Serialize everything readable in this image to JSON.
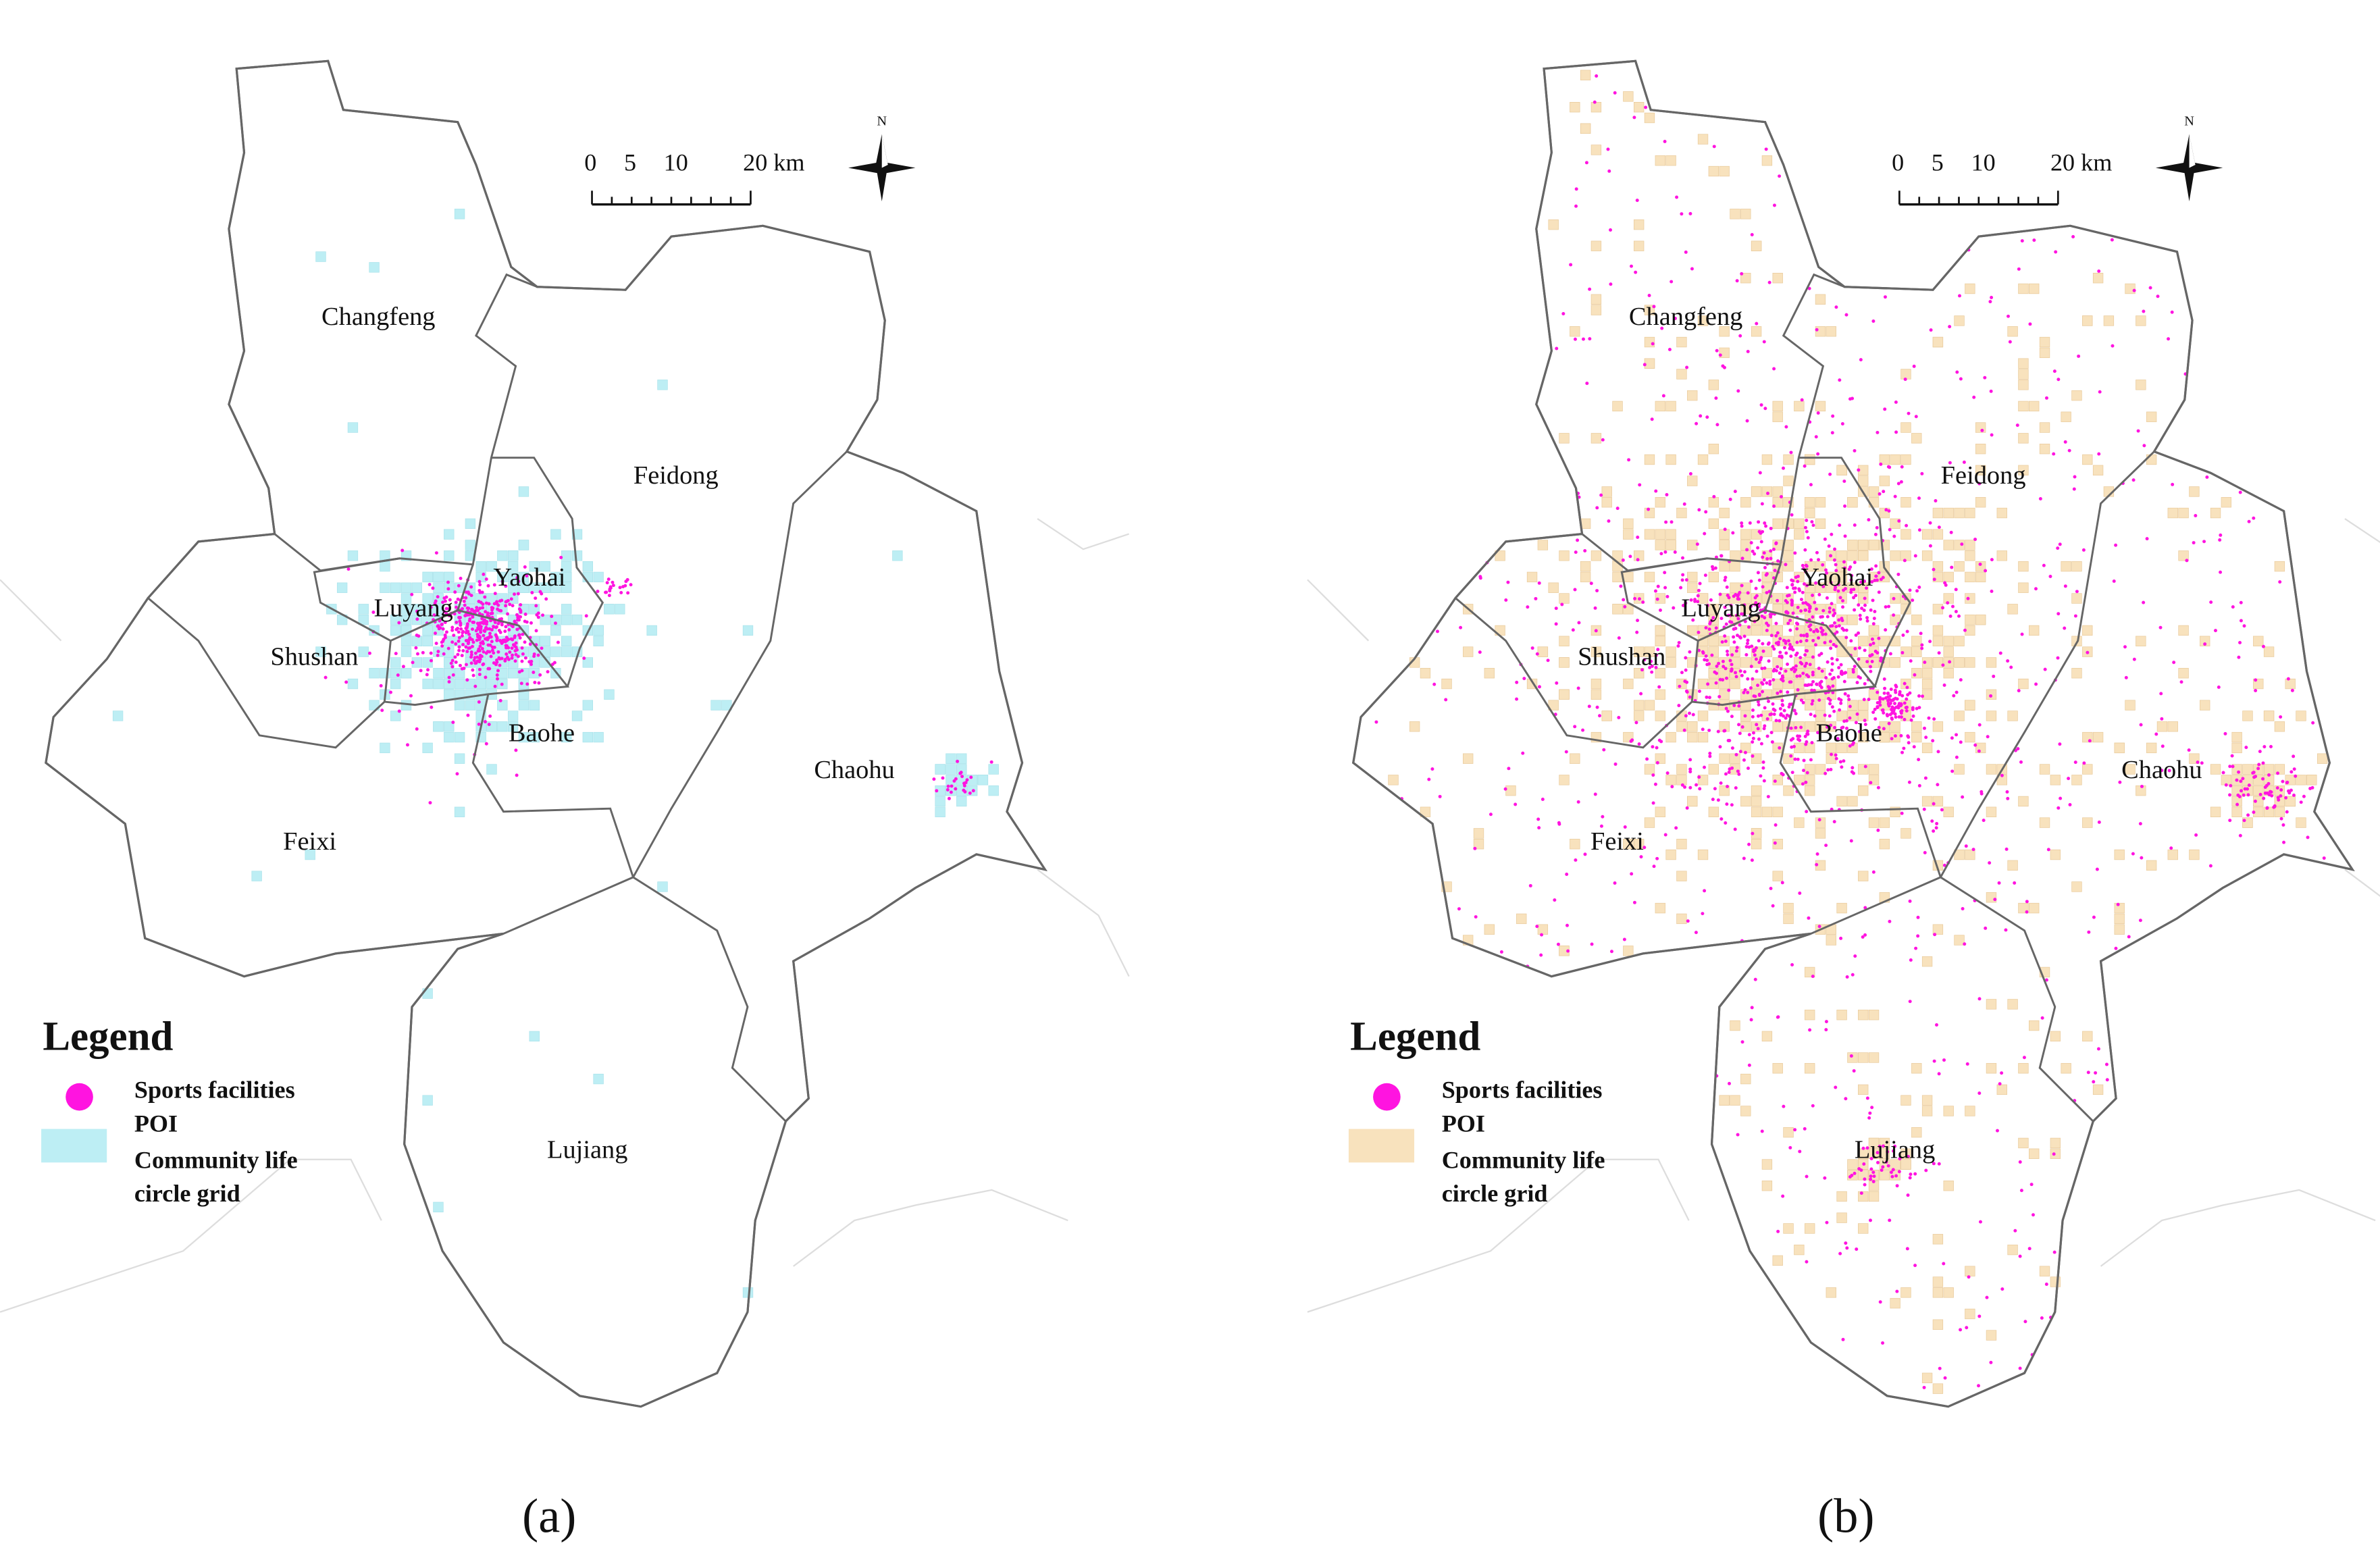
{
  "panels": [
    {
      "caption": "(a)",
      "districts": [
        "Changfeng",
        "Feidong",
        "Yaohai",
        "Luyang",
        "Shushan",
        "Baohe",
        "Chaohu",
        "Feixi",
        "Lujiang"
      ],
      "scale_bar": {
        "labels": [
          "0",
          "5",
          "10",
          "20 km"
        ]
      },
      "north": "N",
      "legend": {
        "title": "Legend",
        "items": [
          {
            "label_lines": [
              "Sports facilities",
              "POI"
            ],
            "color": "#ff14e0"
          },
          {
            "label_lines": [
              "Community life",
              "circle grid"
            ],
            "color": "#bdeef4"
          }
        ]
      }
    },
    {
      "caption": "(b)",
      "districts": [
        "Changfeng",
        "Feidong",
        "Yaohai",
        "Luyang",
        "Shushan",
        "Baohe",
        "Chaohu",
        "Feixi",
        "Lujiang"
      ],
      "scale_bar": {
        "labels": [
          "0",
          "5",
          "10",
          "20 km"
        ]
      },
      "north": "N",
      "legend": {
        "title": "Legend",
        "items": [
          {
            "label_lines": [
              "Sports facilities",
              "POI"
            ],
            "color": "#ff14e0"
          },
          {
            "label_lines": [
              "Community life",
              "circle grid"
            ],
            "color": "#f8e2bd"
          }
        ]
      }
    }
  ]
}
